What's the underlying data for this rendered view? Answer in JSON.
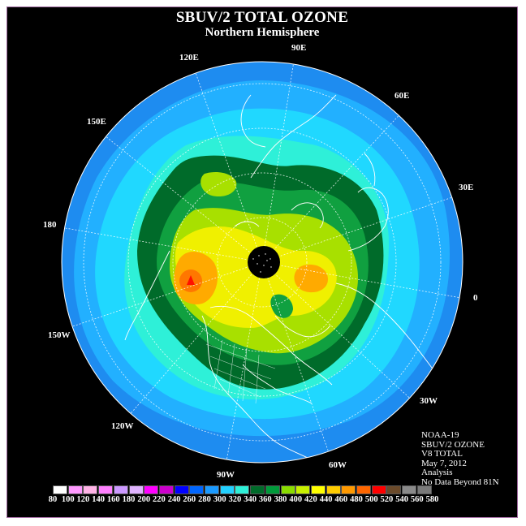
{
  "title": "SBUV/2 TOTAL OZONE",
  "subtitle": "Northern Hemisphere",
  "longitude_labels": {
    "e90": "90E",
    "e120": "120E",
    "e60": "60E",
    "e150": "150E",
    "e30": "30E",
    "d180": "180",
    "d0": "0",
    "w150": "150W",
    "w30": "30W",
    "w120": "120W",
    "w60": "60W",
    "w90": "90W"
  },
  "info": {
    "satellite": "NOAA-19",
    "product": "SBUV/2 OZONE",
    "version": "V8 TOTAL",
    "date": "May 7, 2012",
    "kind": "Analysis",
    "note": "No Data Beyond 81N"
  },
  "color_scale": {
    "values": [
      "80",
      "100",
      "120",
      "140",
      "160",
      "180",
      "200",
      "220",
      "240",
      "260",
      "280",
      "300",
      "320",
      "340",
      "360",
      "380",
      "400",
      "420",
      "440",
      "460",
      "480",
      "500",
      "520",
      "540",
      "560",
      "580"
    ],
    "colors": [
      "#ffffff",
      "#ff99ff",
      "#ffb3e6",
      "#ff80ff",
      "#cc99ff",
      "#e0b3ff",
      "#ff00ff",
      "#cc00cc",
      "#0000ff",
      "#0066ff",
      "#1a9aff",
      "#22d0ff",
      "#2ef0d8",
      "#006b2a",
      "#009a3a",
      "#8adc00",
      "#c8f000",
      "#ffff00",
      "#ffcc00",
      "#ff9900",
      "#ff6600",
      "#ff0000",
      "#6b4a2a",
      "#8a8a8a",
      "#7a7a7a",
      "#6a6a6a"
    ]
  },
  "colors": {
    "background": "#000000",
    "outer_ring": "#1e8cf0",
    "ring_2": "#22b0ff",
    "ring_3": "#20d8ff",
    "cyan_green": "#2ef0d8",
    "dark_green": "#006b2a",
    "green": "#10a040",
    "yellow_green": "#a8e000",
    "yellow": "#f0f000",
    "orange": "#ffaa00",
    "peak": "#ff3300"
  }
}
